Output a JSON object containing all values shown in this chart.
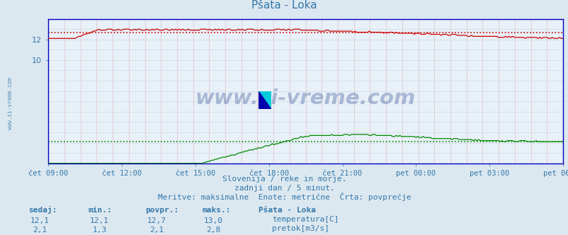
{
  "title": "Pšata - Loka",
  "bg_color": "#dce8f0",
  "plot_bg_color": "#e8f0f8",
  "grid_color_v": "#d8d8f0",
  "grid_color_h": "#e0c8c8",
  "spine_color": "#0000bb",
  "text_color": "#3377aa",
  "watermark_text": "www.si-vreme.com",
  "watermark_color": "#1a3a8a",
  "subtitle1": "Slovenija / reke in morje.",
  "subtitle2": "zadnji dan / 5 minut.",
  "subtitle3": "Meritve: maksimalne  Enote: metrične  Črta: povprečje",
  "xlabel_times": [
    "čet 09:00",
    "čet 12:00",
    "čet 15:00",
    "čet 18:00",
    "čet 21:00",
    "pet 00:00",
    "pet 03:00",
    "pet 06:00"
  ],
  "yticks": [
    10,
    12
  ],
  "ylim": [
    0,
    14.0
  ],
  "temp_avg": 12.7,
  "temp_max": 13.0,
  "temp_min": 12.1,
  "temp_current": 12.1,
  "flow_avg": 2.1,
  "flow_max": 2.8,
  "flow_min": 1.3,
  "flow_current": 2.1,
  "temp_line_color": "#cc0000",
  "flow_line_color": "#008800",
  "left_label_color": "#3377aa",
  "n_points": 288
}
